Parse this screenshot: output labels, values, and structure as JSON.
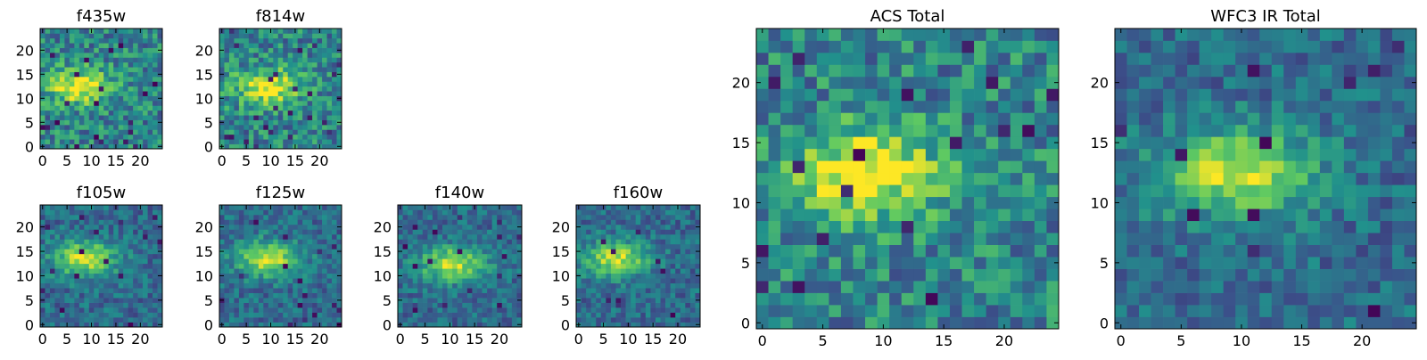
{
  "chart_data": [
    {
      "type": "heatmap",
      "title": "f435w",
      "xlim": [
        0,
        25
      ],
      "ylim": [
        0,
        25
      ],
      "xticks": [
        0,
        5,
        10,
        15,
        20
      ],
      "yticks": [
        0,
        5,
        10,
        15,
        20
      ],
      "grid": false,
      "colormap": "viridis",
      "emission_center": [
        8,
        13
      ],
      "note": "noisy 25x25 cutout, faint diffuse signal"
    },
    {
      "type": "heatmap",
      "title": "f814w",
      "xlim": [
        0,
        25
      ],
      "ylim": [
        0,
        25
      ],
      "xticks": [
        0,
        5,
        10,
        15,
        20
      ],
      "yticks": [
        0,
        5,
        10,
        15,
        20
      ],
      "grid": false,
      "colormap": "viridis",
      "emission_center": [
        10,
        13
      ]
    },
    {
      "type": "heatmap",
      "title": "f105w",
      "xlim": [
        0,
        25
      ],
      "ylim": [
        0,
        25
      ],
      "xticks": [
        0,
        5,
        10,
        15,
        20
      ],
      "yticks": [
        0,
        5,
        10,
        15,
        20
      ],
      "grid": false,
      "colormap": "viridis",
      "emission_center": [
        9,
        14
      ]
    },
    {
      "type": "heatmap",
      "title": "f125w",
      "xlim": [
        0,
        25
      ],
      "ylim": [
        0,
        25
      ],
      "xticks": [
        0,
        5,
        10,
        15,
        20
      ],
      "yticks": [
        0,
        5,
        10,
        15,
        20
      ],
      "grid": false,
      "colormap": "viridis",
      "emission_center": [
        10,
        14
      ]
    },
    {
      "type": "heatmap",
      "title": "f140w",
      "xlim": [
        0,
        25
      ],
      "ylim": [
        0,
        25
      ],
      "xticks": [
        0,
        5,
        10,
        15,
        20
      ],
      "yticks": [
        0,
        5,
        10,
        15,
        20
      ],
      "grid": false,
      "colormap": "viridis",
      "emission_center": [
        11,
        13
      ]
    },
    {
      "type": "heatmap",
      "title": "f160w",
      "xlim": [
        0,
        25
      ],
      "ylim": [
        0,
        25
      ],
      "xticks": [
        0,
        5,
        10,
        15,
        20
      ],
      "yticks": [
        0,
        5,
        10,
        15,
        20
      ],
      "grid": false,
      "colormap": "viridis",
      "emission_center": [
        8,
        14
      ]
    },
    {
      "type": "heatmap",
      "title": "ACS Total",
      "xlim": [
        0,
        25
      ],
      "ylim": [
        0,
        25
      ],
      "xticks": [
        0,
        5,
        10,
        15,
        20
      ],
      "yticks": [
        0,
        5,
        10,
        15,
        20
      ],
      "grid": false,
      "colormap": "viridis",
      "emission_center": [
        9,
        13
      ]
    },
    {
      "type": "heatmap",
      "title": "WFC3 IR Total",
      "xlim": [
        0,
        25
      ],
      "ylim": [
        0,
        25
      ],
      "xticks": [
        0,
        5,
        10,
        15,
        20
      ],
      "yticks": [
        0,
        5,
        10,
        15,
        20
      ],
      "grid": false,
      "colormap": "viridis",
      "emission_center": [
        10,
        13
      ]
    }
  ],
  "colors": {
    "viridis_stops": [
      "#440154",
      "#3b528b",
      "#21918c",
      "#5ec962",
      "#fde725"
    ]
  }
}
